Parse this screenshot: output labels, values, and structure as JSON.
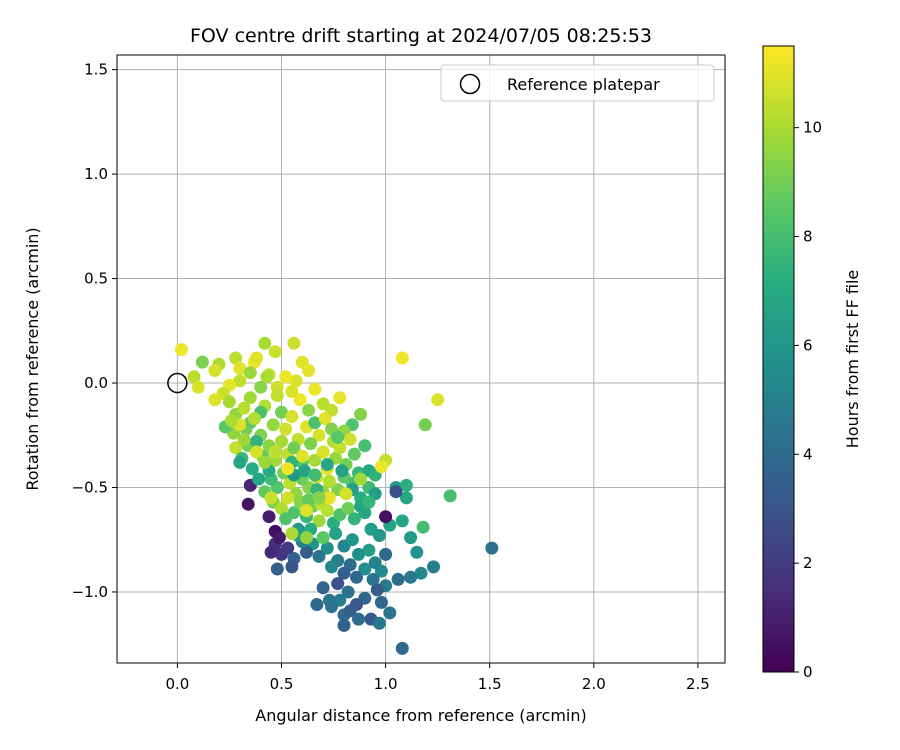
{
  "chart_data": {
    "type": "scatter",
    "title": "FOV centre drift starting at 2024/07/05 08:25:53",
    "xlabel": "Angular distance from reference (arcmin)",
    "ylabel": "Rotation from reference (arcmin)",
    "xlim": [
      -0.29,
      2.63
    ],
    "ylim": [
      -1.34,
      1.57
    ],
    "xticks": [
      0.0,
      0.5,
      1.0,
      1.5,
      2.0,
      2.5
    ],
    "xtick_labels": [
      "0.0",
      "0.5",
      "1.0",
      "1.5",
      "2.0",
      "2.5"
    ],
    "yticks": [
      1.5,
      1.0,
      0.5,
      0.0,
      -0.5,
      -1.0
    ],
    "ytick_labels": [
      "1.5",
      "1.0",
      "0.5",
      "0.0",
      "−0.5",
      "−1.0"
    ],
    "grid": true,
    "legend": {
      "placement": "top-right",
      "entries": [
        "Reference platepar"
      ]
    },
    "reference_point": {
      "x": 0.0,
      "y": 0.0,
      "marker": "open-circle"
    },
    "colorbar": {
      "label": "Hours from first FF file",
      "colormap": "viridis",
      "range": [
        0,
        11.5
      ],
      "ticks": [
        0,
        2,
        4,
        6,
        8,
        10
      ],
      "tick_labels": [
        "0",
        "2",
        "4",
        "6",
        "8",
        "10"
      ]
    },
    "series": [
      {
        "marker": "filled-circle",
        "columns": [
          "x",
          "y",
          "hours"
        ],
        "points": [
          [
            0.02,
            0.16,
            11.2
          ],
          [
            0.08,
            0.03,
            10.3
          ],
          [
            0.12,
            0.1,
            9.2
          ],
          [
            0.2,
            0.09,
            10.1
          ],
          [
            0.18,
            0.06,
            10.8
          ],
          [
            0.1,
            -0.02,
            10.9
          ],
          [
            0.28,
            0.12,
            10.3
          ],
          [
            0.3,
            0.07,
            11.0
          ],
          [
            0.37,
            0.1,
            11.3
          ],
          [
            0.35,
            0.05,
            9.8
          ],
          [
            0.42,
            0.19,
            10.0
          ],
          [
            0.47,
            0.15,
            10.6
          ],
          [
            0.56,
            0.19,
            10.6
          ],
          [
            0.6,
            0.1,
            11.0
          ],
          [
            0.63,
            0.06,
            11.1
          ],
          [
            0.57,
            0.01,
            10.9
          ],
          [
            0.52,
            0.03,
            11.2
          ],
          [
            0.48,
            -0.02,
            10.7
          ],
          [
            0.44,
            0.04,
            10.4
          ],
          [
            0.4,
            -0.02,
            9.4
          ],
          [
            0.38,
            0.12,
            11.0
          ],
          [
            0.43,
            0.03,
            10.1
          ],
          [
            0.3,
            0.01,
            10.5
          ],
          [
            0.25,
            -0.01,
            11.1
          ],
          [
            0.22,
            -0.05,
            10.6
          ],
          [
            0.18,
            -0.08,
            10.9
          ],
          [
            0.25,
            -0.09,
            10.0
          ],
          [
            0.35,
            -0.07,
            9.9
          ],
          [
            0.28,
            -0.15,
            9.6
          ],
          [
            0.32,
            -0.12,
            10.3
          ],
          [
            0.42,
            -0.11,
            10.2
          ],
          [
            0.48,
            -0.06,
            10.5
          ],
          [
            0.55,
            -0.04,
            10.9
          ],
          [
            0.59,
            -0.08,
            11.3
          ],
          [
            0.66,
            -0.03,
            11.2
          ],
          [
            0.7,
            -0.1,
            10.3
          ],
          [
            0.78,
            -0.07,
            11.1
          ],
          [
            0.74,
            -0.13,
            10.4
          ],
          [
            0.88,
            -0.15,
            9.3
          ],
          [
            0.84,
            -0.2,
            8.3
          ],
          [
            0.9,
            -0.3,
            8.0
          ],
          [
            0.8,
            -0.23,
            9.6
          ],
          [
            0.75,
            -0.28,
            10.2
          ],
          [
            0.68,
            -0.25,
            10.8
          ],
          [
            0.62,
            -0.21,
            11.0
          ],
          [
            0.58,
            -0.27,
            10.5
          ],
          [
            0.52,
            -0.22,
            10.7
          ],
          [
            0.46,
            -0.2,
            9.7
          ],
          [
            0.4,
            -0.25,
            9.3
          ],
          [
            0.33,
            -0.22,
            9.0
          ],
          [
            0.27,
            -0.24,
            9.6
          ],
          [
            0.23,
            -0.21,
            8.5
          ],
          [
            0.28,
            -0.31,
            10.5
          ],
          [
            0.31,
            -0.36,
            7.8
          ],
          [
            0.34,
            -0.3,
            9.1
          ],
          [
            0.3,
            -0.38,
            6.8
          ],
          [
            0.36,
            -0.41,
            7.2
          ],
          [
            0.41,
            -0.35,
            8.8
          ],
          [
            0.44,
            -0.3,
            9.5
          ],
          [
            0.47,
            -0.37,
            9.9
          ],
          [
            0.5,
            -0.28,
            10.0
          ],
          [
            0.53,
            -0.34,
            10.4
          ],
          [
            0.56,
            -0.31,
            9.0
          ],
          [
            0.6,
            -0.38,
            8.5
          ],
          [
            0.64,
            -0.29,
            9.2
          ],
          [
            0.66,
            -0.37,
            10.0
          ],
          [
            0.7,
            -0.33,
            10.8
          ],
          [
            0.72,
            -0.41,
            11.0
          ],
          [
            0.76,
            -0.36,
            9.7
          ],
          [
            0.78,
            -0.31,
            10.5
          ],
          [
            0.81,
            -0.39,
            9.1
          ],
          [
            0.85,
            -0.34,
            8.7
          ],
          [
            0.87,
            -0.43,
            7.6
          ],
          [
            0.92,
            -0.42,
            7.0
          ],
          [
            0.95,
            -0.44,
            7.4
          ],
          [
            1.0,
            -0.37,
            10.5
          ],
          [
            0.98,
            -0.4,
            11.2
          ],
          [
            0.92,
            -0.5,
            7.8
          ],
          [
            0.95,
            -0.53,
            6.5
          ],
          [
            0.88,
            -0.55,
            7.2
          ],
          [
            0.84,
            -0.48,
            8.1
          ],
          [
            0.8,
            -0.45,
            8.6
          ],
          [
            0.77,
            -0.51,
            9.3
          ],
          [
            0.73,
            -0.47,
            10.2
          ],
          [
            0.7,
            -0.52,
            9.8
          ],
          [
            0.67,
            -0.45,
            10.6
          ],
          [
            0.63,
            -0.5,
            9.4
          ],
          [
            0.6,
            -0.46,
            8.9
          ],
          [
            0.57,
            -0.53,
            9.6
          ],
          [
            0.54,
            -0.48,
            10.4
          ],
          [
            0.51,
            -0.43,
            9.0
          ],
          [
            0.48,
            -0.5,
            8.4
          ],
          [
            0.45,
            -0.46,
            7.9
          ],
          [
            0.42,
            -0.52,
            8.7
          ],
          [
            0.46,
            -0.57,
            9.2
          ],
          [
            0.5,
            -0.6,
            10.1
          ],
          [
            0.53,
            -0.55,
            10.7
          ],
          [
            0.56,
            -0.62,
            8.3
          ],
          [
            0.59,
            -0.57,
            9.5
          ],
          [
            0.62,
            -0.64,
            7.7
          ],
          [
            0.65,
            -0.59,
            8.9
          ],
          [
            0.68,
            -0.66,
            9.8
          ],
          [
            0.72,
            -0.61,
            10.3
          ],
          [
            0.75,
            -0.67,
            7.3
          ],
          [
            0.78,
            -0.63,
            8.2
          ],
          [
            0.82,
            -0.6,
            9.0
          ],
          [
            0.85,
            -0.65,
            7.5
          ],
          [
            0.9,
            -0.62,
            6.9
          ],
          [
            0.93,
            -0.7,
            6.4
          ],
          [
            0.97,
            -0.73,
            6.1
          ],
          [
            1.02,
            -0.68,
            6.7
          ],
          [
            1.05,
            -0.5,
            6.5
          ],
          [
            1.08,
            -0.66,
            6.8
          ],
          [
            1.1,
            -0.55,
            7.0
          ],
          [
            1.12,
            -0.74,
            6.2
          ],
          [
            1.15,
            -0.81,
            5.9
          ],
          [
            1.18,
            -0.69,
            8.0
          ],
          [
            1.1,
            -0.49,
            7.3
          ],
          [
            1.19,
            -0.2,
            9.1
          ],
          [
            1.25,
            -0.08,
            10.9
          ],
          [
            1.08,
            0.12,
            11.3
          ],
          [
            1.31,
            -0.54,
            8.1
          ],
          [
            1.51,
            -0.79,
            4.3
          ],
          [
            1.23,
            -0.88,
            4.9
          ],
          [
            1.17,
            -0.91,
            5.3
          ],
          [
            1.12,
            -0.93,
            4.6
          ],
          [
            1.06,
            -0.94,
            4.1
          ],
          [
            1.0,
            -0.97,
            4.7
          ],
          [
            0.98,
            -0.9,
            5.5
          ],
          [
            0.94,
            -0.94,
            4.4
          ],
          [
            0.9,
            -0.89,
            5.6
          ],
          [
            0.86,
            -0.93,
            3.9
          ],
          [
            0.83,
            -0.87,
            4.2
          ],
          [
            0.8,
            -0.91,
            3.6
          ],
          [
            0.77,
            -0.85,
            4.8
          ],
          [
            0.74,
            -0.88,
            5.4
          ],
          [
            0.72,
            -0.79,
            5.8
          ],
          [
            0.68,
            -0.83,
            4.5
          ],
          [
            0.65,
            -0.77,
            6.0
          ],
          [
            0.62,
            -0.81,
            3.3
          ],
          [
            0.6,
            -0.76,
            5.0
          ],
          [
            0.56,
            -0.84,
            3.7
          ],
          [
            0.53,
            -0.79,
            2.0
          ],
          [
            0.5,
            -0.82,
            1.8
          ],
          [
            0.47,
            -0.77,
            1.5
          ],
          [
            0.55,
            -0.88,
            3.1
          ],
          [
            0.48,
            -0.89,
            3.5
          ],
          [
            0.58,
            -0.73,
            6.3
          ],
          [
            0.64,
            -0.7,
            7.1
          ],
          [
            0.7,
            -0.74,
            8.6
          ],
          [
            0.76,
            -0.72,
            6.6
          ],
          [
            0.8,
            -0.78,
            5.2
          ],
          [
            0.84,
            -0.75,
            6.0
          ],
          [
            0.87,
            -0.82,
            5.7
          ],
          [
            0.92,
            -0.8,
            6.4
          ],
          [
            0.95,
            -0.86,
            5.1
          ],
          [
            1.0,
            -0.82,
            4.0
          ],
          [
            0.96,
            -0.99,
            3.4
          ],
          [
            0.9,
            -1.03,
            3.8
          ],
          [
            0.86,
            -1.06,
            3.2
          ],
          [
            0.82,
            -1.0,
            4.3
          ],
          [
            0.78,
            -1.04,
            4.9
          ],
          [
            0.77,
            -0.96,
            3.0
          ],
          [
            0.73,
            -1.04,
            4.6
          ],
          [
            0.7,
            -0.98,
            3.7
          ],
          [
            0.67,
            -1.06,
            3.9
          ],
          [
            0.74,
            -1.07,
            4.4
          ],
          [
            0.8,
            -1.11,
            4.1
          ],
          [
            0.83,
            -1.09,
            3.5
          ],
          [
            0.8,
            -1.16,
            3.6
          ],
          [
            0.87,
            -1.13,
            4.2
          ],
          [
            0.93,
            -1.13,
            3.3
          ],
          [
            0.97,
            -1.15,
            4.7
          ],
          [
            0.98,
            -1.05,
            3.9
          ],
          [
            1.02,
            -1.1,
            4.5
          ],
          [
            1.08,
            -1.27,
            4.0
          ],
          [
            0.35,
            -0.49,
            1.2
          ],
          [
            0.34,
            -0.58,
            0.6
          ],
          [
            0.44,
            -0.64,
            0.9
          ],
          [
            0.47,
            -0.71,
            0.4
          ],
          [
            0.49,
            -0.74,
            0.8
          ],
          [
            0.45,
            -0.81,
            1.3
          ],
          [
            1.0,
            -0.64,
            0.5
          ],
          [
            1.05,
            -0.52,
            2.8
          ],
          [
            0.88,
            -0.59,
            6.8
          ],
          [
            0.4,
            -0.14,
            8.2
          ],
          [
            0.35,
            -0.19,
            8.8
          ],
          [
            0.38,
            -0.28,
            7.5
          ],
          [
            0.44,
            -0.42,
            7.1
          ],
          [
            0.39,
            -0.46,
            6.9
          ],
          [
            0.55,
            -0.38,
            7.4
          ],
          [
            0.61,
            -0.42,
            6.8
          ],
          [
            0.66,
            -0.44,
            7.9
          ],
          [
            0.72,
            -0.39,
            7.0
          ],
          [
            0.79,
            -0.42,
            6.6
          ],
          [
            0.84,
            -0.51,
            6.5
          ],
          [
            0.92,
            -0.57,
            7.6
          ],
          [
            0.58,
            -0.7,
            6.2
          ],
          [
            0.67,
            -0.51,
            7.5
          ],
          [
            0.63,
            -0.56,
            8.8
          ],
          [
            0.52,
            -0.65,
            8.3
          ],
          [
            0.56,
            -0.44,
            6.3
          ],
          [
            0.42,
            -0.38,
            9.8
          ],
          [
            0.3,
            -0.2,
            10.9
          ],
          [
            0.37,
            -0.17,
            10.2
          ],
          [
            0.5,
            -0.14,
            9.0
          ],
          [
            0.55,
            -0.16,
            10.8
          ],
          [
            0.63,
            -0.13,
            9.5
          ],
          [
            0.66,
            -0.19,
            8.2
          ],
          [
            0.71,
            -0.17,
            11.0
          ],
          [
            0.74,
            -0.22,
            9.3
          ],
          [
            0.83,
            -0.27,
            10.7
          ],
          [
            0.77,
            -0.26,
            8.5
          ],
          [
            0.6,
            -0.35,
            10.9
          ],
          [
            0.53,
            -0.41,
            11.2
          ],
          [
            0.47,
            -0.33,
            10.4
          ],
          [
            0.38,
            -0.33,
            10.8
          ],
          [
            0.32,
            -0.27,
            9.8
          ],
          [
            0.26,
            -0.18,
            10.1
          ],
          [
            0.69,
            -0.58,
            10.4
          ],
          [
            0.73,
            -0.55,
            11.1
          ],
          [
            0.81,
            -0.53,
            10.8
          ],
          [
            0.88,
            -0.46,
            9.9
          ],
          [
            0.62,
            -0.74,
            9.6
          ],
          [
            0.55,
            -0.72,
            10.0
          ],
          [
            0.45,
            -0.55,
            10.6
          ],
          [
            0.62,
            -0.61,
            10.9
          ],
          [
            0.68,
            -0.55,
            9.4
          ]
        ]
      }
    ]
  }
}
